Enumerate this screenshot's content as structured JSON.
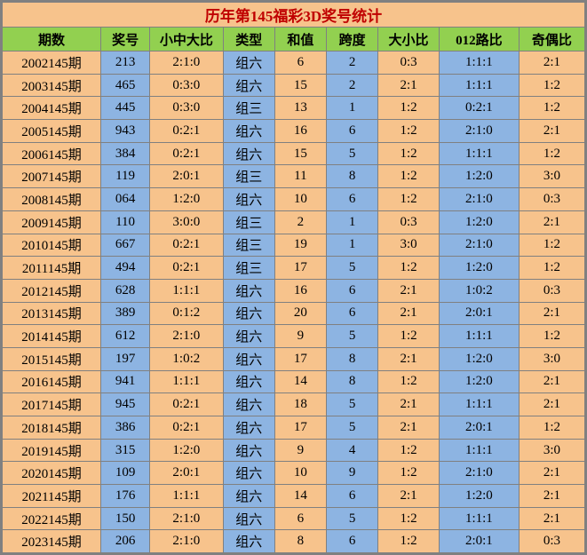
{
  "title": "历年第145福彩3D奖号统计",
  "columns": [
    "期数",
    "奖号",
    "小中大比",
    "类型",
    "和值",
    "跨度",
    "大小比",
    "012路比",
    "奇偶比"
  ],
  "rows": [
    {
      "period": "2002145期",
      "num": "213",
      "ratio": "2:1:0",
      "type": "组六",
      "sum": "6",
      "span": "2",
      "bigsmall": "0:3",
      "road": "1:1:1",
      "oddeven": "2:1"
    },
    {
      "period": "2003145期",
      "num": "465",
      "ratio": "0:3:0",
      "type": "组六",
      "sum": "15",
      "span": "2",
      "bigsmall": "2:1",
      "road": "1:1:1",
      "oddeven": "1:2"
    },
    {
      "period": "2004145期",
      "num": "445",
      "ratio": "0:3:0",
      "type": "组三",
      "sum": "13",
      "span": "1",
      "bigsmall": "1:2",
      "road": "0:2:1",
      "oddeven": "1:2"
    },
    {
      "period": "2005145期",
      "num": "943",
      "ratio": "0:2:1",
      "type": "组六",
      "sum": "16",
      "span": "6",
      "bigsmall": "1:2",
      "road": "2:1:0",
      "oddeven": "2:1"
    },
    {
      "period": "2006145期",
      "num": "384",
      "ratio": "0:2:1",
      "type": "组六",
      "sum": "15",
      "span": "5",
      "bigsmall": "1:2",
      "road": "1:1:1",
      "oddeven": "1:2"
    },
    {
      "period": "2007145期",
      "num": "119",
      "ratio": "2:0:1",
      "type": "组三",
      "sum": "11",
      "span": "8",
      "bigsmall": "1:2",
      "road": "1:2:0",
      "oddeven": "3:0"
    },
    {
      "period": "2008145期",
      "num": "064",
      "ratio": "1:2:0",
      "type": "组六",
      "sum": "10",
      "span": "6",
      "bigsmall": "1:2",
      "road": "2:1:0",
      "oddeven": "0:3"
    },
    {
      "period": "2009145期",
      "num": "110",
      "ratio": "3:0:0",
      "type": "组三",
      "sum": "2",
      "span": "1",
      "bigsmall": "0:3",
      "road": "1:2:0",
      "oddeven": "2:1"
    },
    {
      "period": "2010145期",
      "num": "667",
      "ratio": "0:2:1",
      "type": "组三",
      "sum": "19",
      "span": "1",
      "bigsmall": "3:0",
      "road": "2:1:0",
      "oddeven": "1:2"
    },
    {
      "period": "2011145期",
      "num": "494",
      "ratio": "0:2:1",
      "type": "组三",
      "sum": "17",
      "span": "5",
      "bigsmall": "1:2",
      "road": "1:2:0",
      "oddeven": "1:2"
    },
    {
      "period": "2012145期",
      "num": "628",
      "ratio": "1:1:1",
      "type": "组六",
      "sum": "16",
      "span": "6",
      "bigsmall": "2:1",
      "road": "1:0:2",
      "oddeven": "0:3"
    },
    {
      "period": "2013145期",
      "num": "389",
      "ratio": "0:1:2",
      "type": "组六",
      "sum": "20",
      "span": "6",
      "bigsmall": "2:1",
      "road": "2:0:1",
      "oddeven": "2:1"
    },
    {
      "period": "2014145期",
      "num": "612",
      "ratio": "2:1:0",
      "type": "组六",
      "sum": "9",
      "span": "5",
      "bigsmall": "1:2",
      "road": "1:1:1",
      "oddeven": "1:2"
    },
    {
      "period": "2015145期",
      "num": "197",
      "ratio": "1:0:2",
      "type": "组六",
      "sum": "17",
      "span": "8",
      "bigsmall": "2:1",
      "road": "1:2:0",
      "oddeven": "3:0"
    },
    {
      "period": "2016145期",
      "num": "941",
      "ratio": "1:1:1",
      "type": "组六",
      "sum": "14",
      "span": "8",
      "bigsmall": "1:2",
      "road": "1:2:0",
      "oddeven": "2:1"
    },
    {
      "period": "2017145期",
      "num": "945",
      "ratio": "0:2:1",
      "type": "组六",
      "sum": "18",
      "span": "5",
      "bigsmall": "2:1",
      "road": "1:1:1",
      "oddeven": "2:1"
    },
    {
      "period": "2018145期",
      "num": "386",
      "ratio": "0:2:1",
      "type": "组六",
      "sum": "17",
      "span": "5",
      "bigsmall": "2:1",
      "road": "2:0:1",
      "oddeven": "1:2"
    },
    {
      "period": "2019145期",
      "num": "315",
      "ratio": "1:2:0",
      "type": "组六",
      "sum": "9",
      "span": "4",
      "bigsmall": "1:2",
      "road": "1:1:1",
      "oddeven": "3:0"
    },
    {
      "period": "2020145期",
      "num": "109",
      "ratio": "2:0:1",
      "type": "组六",
      "sum": "10",
      "span": "9",
      "bigsmall": "1:2",
      "road": "2:1:0",
      "oddeven": "2:1"
    },
    {
      "period": "2021145期",
      "num": "176",
      "ratio": "1:1:1",
      "type": "组六",
      "sum": "14",
      "span": "6",
      "bigsmall": "2:1",
      "road": "1:2:0",
      "oddeven": "2:1"
    },
    {
      "period": "2022145期",
      "num": "150",
      "ratio": "2:1:0",
      "type": "组六",
      "sum": "6",
      "span": "5",
      "bigsmall": "1:2",
      "road": "1:1:1",
      "oddeven": "2:1"
    },
    {
      "period": "2023145期",
      "num": "206",
      "ratio": "2:1:0",
      "type": "组六",
      "sum": "8",
      "span": "6",
      "bigsmall": "1:2",
      "road": "2:0:1",
      "oddeven": "0:3"
    }
  ],
  "colors": {
    "orange": "#f7c38c",
    "blue": "#8db4e2",
    "green": "#92d050",
    "title_text": "#c00000",
    "border": "#808080"
  },
  "pattern": [
    "orange",
    "blue",
    "orange",
    "blue",
    "orange",
    "blue",
    "orange",
    "blue",
    "orange"
  ],
  "col_widths": {
    "period": 105,
    "num": 52,
    "ratio1": 78,
    "type": 55,
    "sum": 55,
    "span": 55,
    "bigsm": 65,
    "road": 85,
    "oddeven": 70
  }
}
